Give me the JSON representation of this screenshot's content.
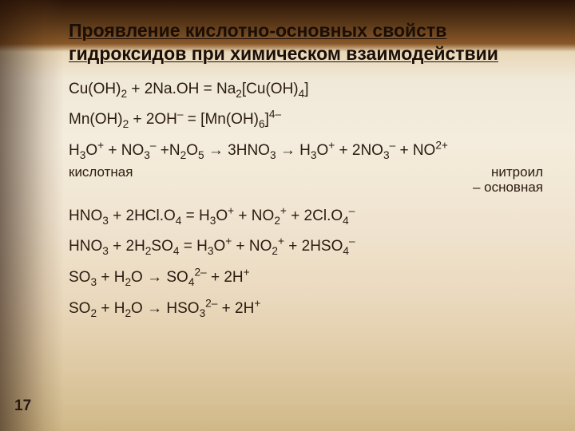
{
  "page_number": "17",
  "title": "Проявление кислотно-основных свойств гидроксидов при химическом взаимодействии",
  "eq": {
    "l1": "Cu(OH)",
    "l1b": " + 2Na.OH = Na",
    "l1c": "[Cu(OH)",
    "l1d": "]",
    "l2": "Mn(OH)",
    "l2b": " + 2OH",
    "l2c": " = [Mn(OH)",
    "l2d": "]",
    "l3": "H",
    "l3b": "O",
    "l3c": " + NO",
    "l3d": " +N",
    "l3e": "O",
    "l3f": " → 3HNO",
    "l3g": " → H",
    "l3h": "O",
    "l3i": " + 2NO",
    "l3j": " + NO",
    "annot_left": "кислотная",
    "annot_right1": "нитроил",
    "annot_right2": "– основная",
    "l4": "HNO",
    "l4b": " + 2HCl.O",
    "l4c": " = H",
    "l4d": "O",
    "l4e": " + NO",
    "l4f": " + 2Cl.O",
    "l5": "HNO",
    "l5b": " + 2H",
    "l5c": "SO",
    "l5d": " = H",
    "l5e": "O",
    "l5f": " + NO",
    "l5g": " + 2HSO",
    "l6": "SO",
    "l6b": " + H",
    "l6c": "O → SO",
    "l6d": " + 2H",
    "l7": "SO",
    "l7b": " + H",
    "l7c": "O → HSO",
    "l7d": " + 2H"
  },
  "s": {
    "n2": "2",
    "n3": "3",
    "n4": "4",
    "n5": "5",
    "n6": "6",
    "plus": "+",
    "minus": "–",
    "minus2": "2–",
    "plus2": "2+",
    "minus4": "4–"
  }
}
